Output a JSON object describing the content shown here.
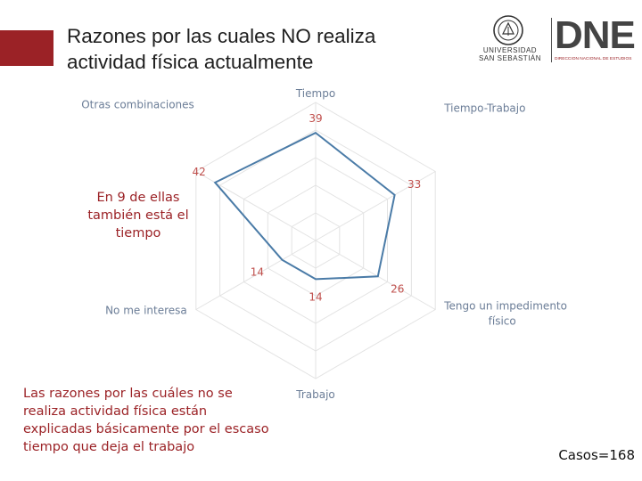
{
  "header": {
    "title_line1": "Razones por las cuales NO realiza",
    "title_line2": "actividad física actualmente",
    "accent_color": "#9b2226"
  },
  "logos": {
    "university_line1": "UNIVERSIDAD",
    "university_line2": "SAN SEBASTIÁN",
    "dne_letters": "DNE",
    "dne_subtitle": "DIRECCIÓN NACIONAL DE ESTUDIOS"
  },
  "notes": {
    "otras_note": "En 9 de ellas también está el tiempo",
    "summary": "Las razones por las cuáles no se realiza actividad física están explicadas básicamente por el escaso tiempo que deja el trabajo",
    "cases": "Casos=168"
  },
  "chart_data": {
    "type": "radar",
    "title": "Razones por las cuales NO realiza actividad física actualmente",
    "categories": [
      "Tiempo",
      "Tiempo-Trabajo",
      "Tengo un impedimento físico",
      "Trabajo",
      "No me interesa",
      "Otras combinaciones"
    ],
    "values": [
      39,
      33,
      26,
      14,
      14,
      42
    ],
    "value_labels": [
      "39",
      "33",
      "26",
      "14",
      "14",
      "42"
    ],
    "rlim": [
      0,
      50
    ],
    "grid_rings": 5,
    "series_color": "#4a7ba7",
    "label_color": "#6b7d97",
    "value_label_color": "#c0504d"
  }
}
